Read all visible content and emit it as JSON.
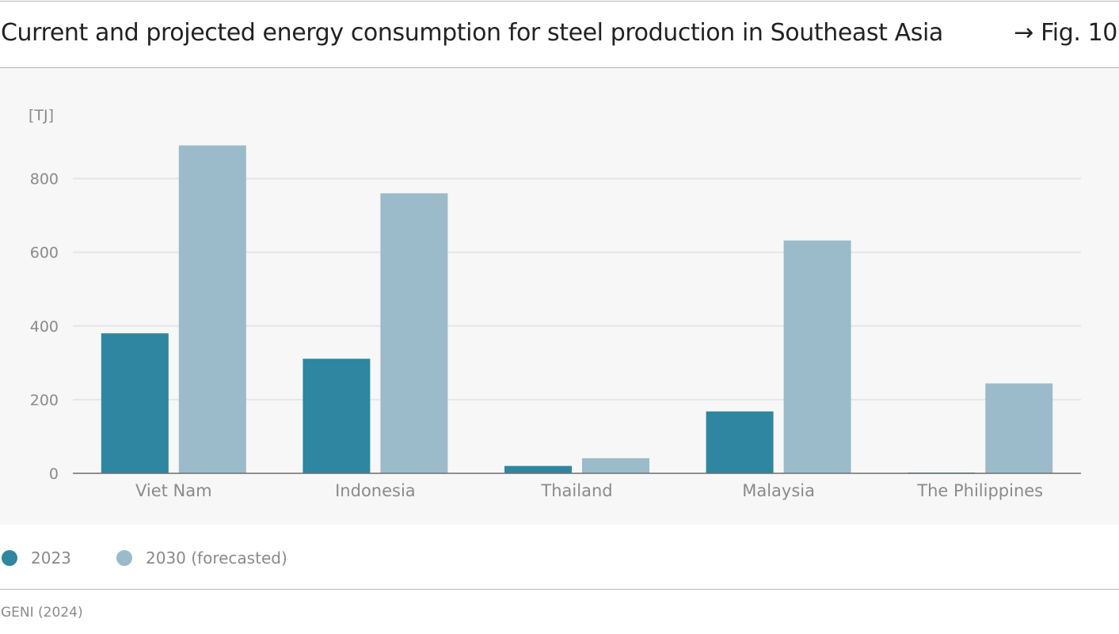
{
  "header": {
    "title": "Current and projected energy consumption for steel production in Southeast Asia",
    "figure_ref": "→ Fig. 10"
  },
  "chart_data": {
    "type": "bar",
    "title": "Current and projected energy consumption for steel production in Southeast Asia",
    "xlabel": "",
    "ylabel": "[TJ]",
    "ylim": [
      0,
      900
    ],
    "yticks": [
      0,
      200,
      400,
      600,
      800
    ],
    "grid": true,
    "categories": [
      "Viet Nam",
      "Indonesia",
      "Thailand",
      "Malaysia",
      "The Philippines"
    ],
    "series": [
      {
        "name": "2023",
        "color": "#2e86a0",
        "values": [
          380,
          311,
          20,
          168,
          2
        ]
      },
      {
        "name": "2030 (forecasted)",
        "color": "#9bbbca",
        "values": [
          890,
          760,
          41,
          632,
          244
        ]
      }
    ],
    "legend_position": "bottom-left"
  },
  "legend": {
    "items": [
      {
        "label": "2023",
        "color": "#2e86a0"
      },
      {
        "label": "2030 (forecasted)",
        "color": "#9bbbca"
      }
    ]
  },
  "footer": {
    "source": "GENI (2024)"
  },
  "colors": {
    "panel_background": "#f7f7f7",
    "gridline": "#e6e6e6",
    "axis": "#6f6f6f",
    "text_muted": "#8a8a8a",
    "title_text": "#222222"
  }
}
